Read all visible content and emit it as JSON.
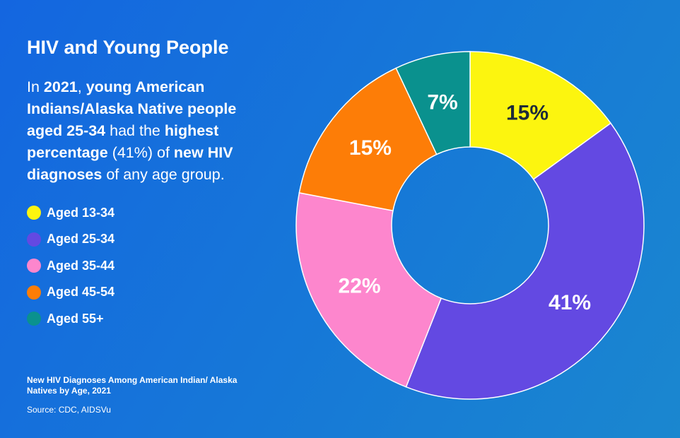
{
  "title": "HIV and Young People",
  "intro": {
    "p1": "In ",
    "year": "2021",
    "p2": ", ",
    "group": "young American Indians/Alaska Native people aged 25-34",
    "p3": " had the ",
    "highest": "highest percentage",
    "p4": " (41%) of ",
    "new_hiv": "new HIV diagnoses",
    "p5": " of any age group."
  },
  "colors": {
    "yellow": "#fcf50f",
    "purple": "#6349e2",
    "pink": "#fd86cd",
    "orange": "#fd7d07",
    "teal": "#0a918e",
    "dark_text": "#1c2a3a",
    "white_text": "#ffffff"
  },
  "footer": {
    "caption": "New HIV Diagnoses Among American Indian/ Alaska Natives by Age, 2021",
    "source": "Source: CDC, AIDSVu"
  },
  "chart_data": {
    "type": "pie",
    "variant": "donut",
    "title": "New HIV Diagnoses Among American Indian/ Alaska Natives by Age, 2021",
    "categories": [
      "Aged 13-34",
      "Aged 25-34",
      "Aged 35-44",
      "Aged 45-54",
      "Aged 55+"
    ],
    "values": [
      15,
      41,
      22,
      15,
      7
    ],
    "labels": [
      "15%",
      "41%",
      "22%",
      "15%",
      "7%"
    ],
    "slice_colors": [
      "#fcf50f",
      "#6349e2",
      "#fd86cd",
      "#fd7d07",
      "#0a918e"
    ],
    "label_colors": [
      "#1c2a3a",
      "#ffffff",
      "#ffffff",
      "#ffffff",
      "#ffffff"
    ],
    "start": "12 o'clock",
    "direction": "clockwise",
    "legend_position": "left"
  }
}
